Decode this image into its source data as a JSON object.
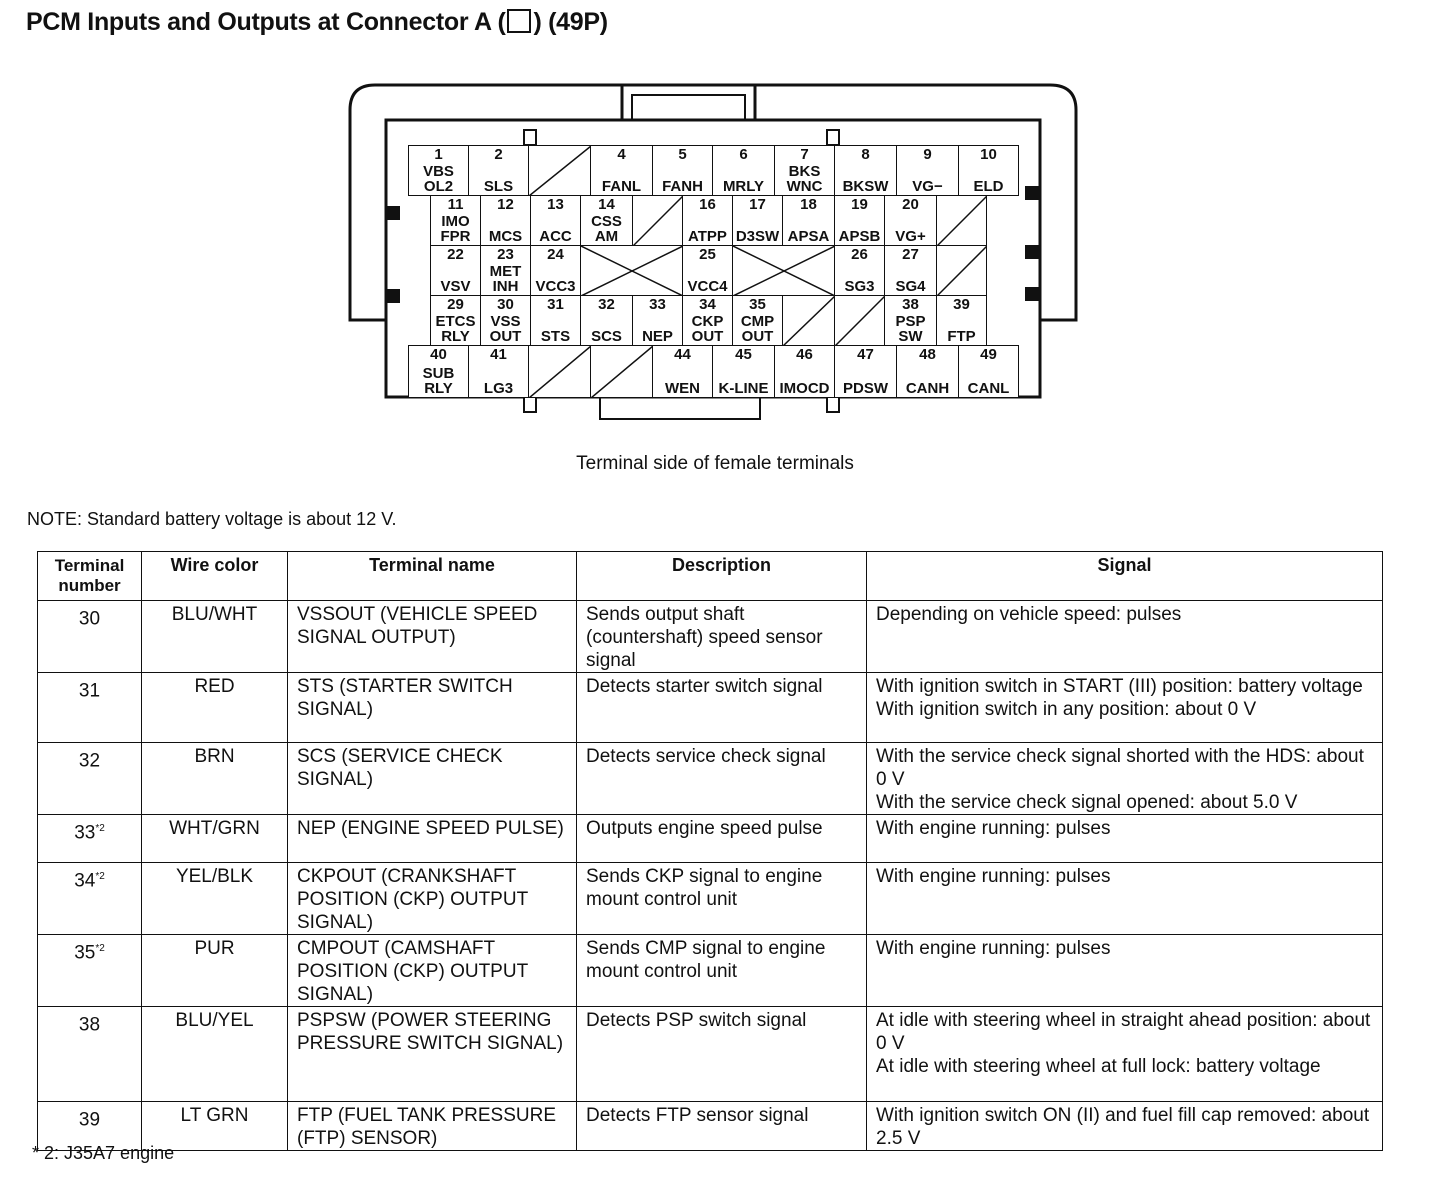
{
  "title_pre": "PCM Inputs and Outputs at Connector A (",
  "title_post": ") (49P)",
  "caption": "Terminal side of female terminals",
  "note": "NOTE: Standard battery voltage is about 12 V.",
  "footnote": "* 2: J35A7 engine",
  "connector": {
    "rows": [
      [
        {
          "n": "1",
          "l": [
            "VBS",
            "OL2"
          ]
        },
        {
          "n": "2",
          "l": [
            "SLS"
          ]
        },
        {
          "t": "slash"
        },
        {
          "n": "4",
          "l": [
            "FANL"
          ]
        },
        {
          "n": "5",
          "l": [
            "FANH"
          ]
        },
        {
          "n": "6",
          "l": [
            "MRLY"
          ]
        },
        {
          "n": "7",
          "l": [
            "BKS",
            "WNC"
          ]
        },
        {
          "n": "8",
          "l": [
            "BKSW"
          ]
        },
        {
          "n": "9",
          "l": [
            "VG−"
          ]
        },
        {
          "n": "10",
          "l": [
            "ELD"
          ]
        }
      ],
      [
        {
          "n": "11",
          "l": [
            "IMO",
            "FPR"
          ]
        },
        {
          "n": "12",
          "l": [
            "MCS"
          ]
        },
        {
          "n": "13",
          "l": [
            "ACC"
          ]
        },
        {
          "n": "14",
          "l": [
            "CSS",
            "AM"
          ]
        },
        {
          "t": "slash"
        },
        {
          "n": "16",
          "l": [
            "ATPP"
          ]
        },
        {
          "n": "17",
          "l": [
            "D3SW"
          ]
        },
        {
          "n": "18",
          "l": [
            "APSA"
          ]
        },
        {
          "n": "19",
          "l": [
            "APSB"
          ]
        },
        {
          "n": "20",
          "l": [
            "VG+"
          ]
        },
        {
          "t": "slash"
        }
      ],
      [
        {
          "n": "22",
          "l": [
            "VSV"
          ]
        },
        {
          "n": "23",
          "l": [
            "MET",
            "INH"
          ]
        },
        {
          "n": "24",
          "l": [
            "VCC3"
          ]
        },
        {
          "t": "x"
        },
        {
          "n": "25",
          "l": [
            "VCC4"
          ]
        },
        {
          "t": "x"
        },
        {
          "n": "26",
          "l": [
            "SG3"
          ]
        },
        {
          "n": "27",
          "l": [
            "SG4"
          ]
        },
        {
          "t": "slash"
        }
      ],
      [
        {
          "n": "29",
          "l": [
            "ETCS",
            "RLY"
          ]
        },
        {
          "n": "30",
          "l": [
            "VSS",
            "OUT"
          ]
        },
        {
          "n": "31",
          "l": [
            "STS"
          ]
        },
        {
          "n": "32",
          "l": [
            "SCS"
          ]
        },
        {
          "n": "33",
          "l": [
            "NEP"
          ]
        },
        {
          "n": "34",
          "l": [
            "CKP",
            "OUT"
          ]
        },
        {
          "n": "35",
          "l": [
            "CMP",
            "OUT"
          ]
        },
        {
          "t": "slash"
        },
        {
          "t": "slash"
        },
        {
          "n": "38",
          "l": [
            "PSP",
            "SW"
          ]
        },
        {
          "n": "39",
          "l": [
            "FTP"
          ]
        }
      ],
      [
        {
          "n": "40",
          "l": [
            "SUB",
            "RLY"
          ]
        },
        {
          "n": "41",
          "l": [
            "LG3"
          ]
        },
        {
          "t": "slash"
        },
        {
          "t": "slash"
        },
        {
          "n": "44",
          "l": [
            "WEN"
          ]
        },
        {
          "n": "45",
          "l": [
            "K-LINE"
          ]
        },
        {
          "n": "46",
          "l": [
            "IMOCD"
          ]
        },
        {
          "n": "47",
          "l": [
            "PDSW"
          ]
        },
        {
          "n": "48",
          "l": [
            "CANH"
          ]
        },
        {
          "n": "49",
          "l": [
            "CANL"
          ]
        }
      ]
    ]
  },
  "table": {
    "headers": [
      "Terminal number",
      "Wire color",
      "Terminal name",
      "Description",
      "Signal"
    ],
    "rows": [
      {
        "term": "30",
        "sup": "",
        "wire": "BLU/WHT",
        "name": "VSSOUT (VEHICLE SPEED SIGNAL OUTPUT)",
        "desc": "Sends output shaft (countershaft) speed sensor signal",
        "signal": "Depending on vehicle speed: pulses"
      },
      {
        "term": "31",
        "sup": "",
        "wire": "RED",
        "name": "STS (STARTER SWITCH SIGNAL)",
        "desc": "Detects starter switch signal",
        "signal": "With ignition switch in START (III) position: battery voltage\nWith ignition switch in any position: about 0 V"
      },
      {
        "term": "32",
        "sup": "",
        "wire": "BRN",
        "name": "SCS (SERVICE CHECK SIGNAL)",
        "desc": "Detects service check signal",
        "signal": "With the service check signal shorted with the HDS: about 0 V\nWith the service check signal opened: about 5.0 V"
      },
      {
        "term": "33",
        "sup": "*2",
        "wire": "WHT/GRN",
        "name": "NEP (ENGINE SPEED PULSE)",
        "desc": "Outputs engine speed pulse",
        "signal": "With engine running: pulses"
      },
      {
        "term": "34",
        "sup": "*2",
        "wire": "YEL/BLK",
        "name": "CKPOUT (CRANKSHAFT POSITION (CKP) OUTPUT SIGNAL)",
        "desc": "Sends CKP signal to engine mount control unit",
        "signal": "With engine running: pulses"
      },
      {
        "term": "35",
        "sup": "*2",
        "wire": "PUR",
        "name": "CMPOUT (CAMSHAFT POSITION (CKP) OUTPUT SIGNAL)",
        "desc": "Sends CMP signal to engine mount control unit",
        "signal": "With engine running: pulses"
      },
      {
        "term": "38",
        "sup": "",
        "wire": "BLU/YEL",
        "name": "PSPSW (POWER STEERING PRESSURE SWITCH SIGNAL)",
        "desc": "Detects PSP switch signal",
        "signal": "At idle with steering wheel in straight ahead position: about 0 V\nAt idle with steering wheel at full lock: battery voltage"
      },
      {
        "term": "39",
        "sup": "",
        "wire": "LT GRN",
        "name": "FTP (FUEL TANK PRESSURE (FTP) SENSOR)",
        "desc": "Detects FTP sensor signal",
        "signal": "With ignition switch ON (II) and fuel fill cap removed: about 2.5 V"
      }
    ]
  }
}
